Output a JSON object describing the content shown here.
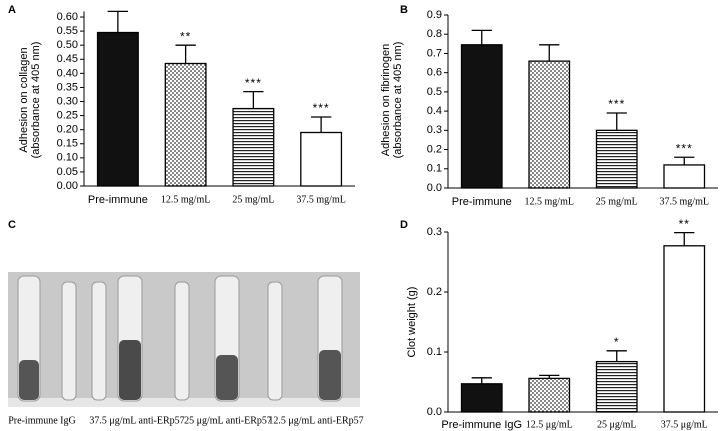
{
  "chart_data": [
    {
      "type": "bar",
      "panel": "A",
      "y_label": [
        "Adhesion on collagen",
        "(absorbance at 405 nm)"
      ],
      "categories": [
        "Pre-immune",
        "12.5 mg/mL",
        "25 mg/mL",
        "37.5 mg/mL"
      ],
      "values": [
        0.545,
        0.435,
        0.275,
        0.19
      ],
      "errors": [
        0.075,
        0.065,
        0.06,
        0.055
      ],
      "annotations": [
        null,
        "**",
        "***",
        "***"
      ],
      "patterns": [
        "solid",
        "dots",
        "hlines",
        "open"
      ],
      "ylim": [
        0,
        0.62
      ],
      "yticks": [
        {
          "value": 0,
          "label": "0.00"
        },
        {
          "value": 0.05,
          "label": "0.05"
        },
        {
          "value": 0.1,
          "label": "0.10"
        },
        {
          "value": 0.15,
          "label": "0.15"
        },
        {
          "value": 0.2,
          "label": "0.20"
        },
        {
          "value": 0.25,
          "label": "0.25"
        },
        {
          "value": 0.3,
          "label": "0.30"
        },
        {
          "value": 0.35,
          "label": "0.35"
        },
        {
          "value": 0.4,
          "label": "0.40"
        },
        {
          "value": 0.45,
          "label": "0.45"
        },
        {
          "value": 0.5,
          "label": "0.50"
        },
        {
          "value": 0.55,
          "label": "0.55"
        },
        {
          "value": 0.6,
          "label": "0.60"
        }
      ]
    },
    {
      "type": "bar",
      "panel": "B",
      "y_label": [
        "Adhesion on fibrinogen",
        "(absorbance at 405 nm)"
      ],
      "categories": [
        "Pre-immune",
        "12.5 mg/mL",
        "25 mg/mL",
        "37.5 mg/mL"
      ],
      "values": [
        0.745,
        0.66,
        0.3,
        0.12
      ],
      "errors": [
        0.075,
        0.085,
        0.09,
        0.04
      ],
      "annotations": [
        null,
        null,
        "***",
        "***"
      ],
      "patterns": [
        "solid",
        "dots",
        "hlines",
        "open"
      ],
      "ylim": [
        0,
        0.9
      ],
      "yticks": [
        {
          "value": 0,
          "label": "0.0"
        },
        {
          "value": 0.1,
          "label": "0.1"
        },
        {
          "value": 0.2,
          "label": "0.2"
        },
        {
          "value": 0.3,
          "label": "0.3"
        },
        {
          "value": 0.4,
          "label": "0.4"
        },
        {
          "value": 0.5,
          "label": "0.5"
        },
        {
          "value": 0.6,
          "label": "0.6"
        },
        {
          "value": 0.7,
          "label": "0.7"
        },
        {
          "value": 0.8,
          "label": "0.8"
        },
        {
          "value": 0.9,
          "label": "0.9"
        }
      ]
    },
    {
      "type": "bar",
      "panel": "D",
      "y_label": [
        "Clot weight (g)"
      ],
      "categories": [
        "Pre-immune IgG",
        "12.5 μg/mL",
        "25 μg/mL",
        "37.5 μg/mL"
      ],
      "values": [
        0.047,
        0.056,
        0.084,
        0.277
      ],
      "errors": [
        0.01,
        0.005,
        0.018,
        0.022
      ],
      "annotations": [
        null,
        null,
        "*",
        "**"
      ],
      "patterns": [
        "solid",
        "dots",
        "hlines",
        "open"
      ],
      "ylim": [
        0,
        0.3
      ],
      "yticks": [
        {
          "value": 0,
          "label": "0.0"
        },
        {
          "value": 0.1,
          "label": "0.1"
        },
        {
          "value": 0.2,
          "label": "0.2"
        },
        {
          "value": 0.3,
          "label": "0.3"
        }
      ]
    }
  ],
  "photo": {
    "panel": "C",
    "labels": [
      "Pre-immune IgG",
      "37.5 μg/mL anti-ERp57",
      "25 μg/mL anti-ERp57",
      "12.5 μg/mL anti-ERp57"
    ]
  }
}
